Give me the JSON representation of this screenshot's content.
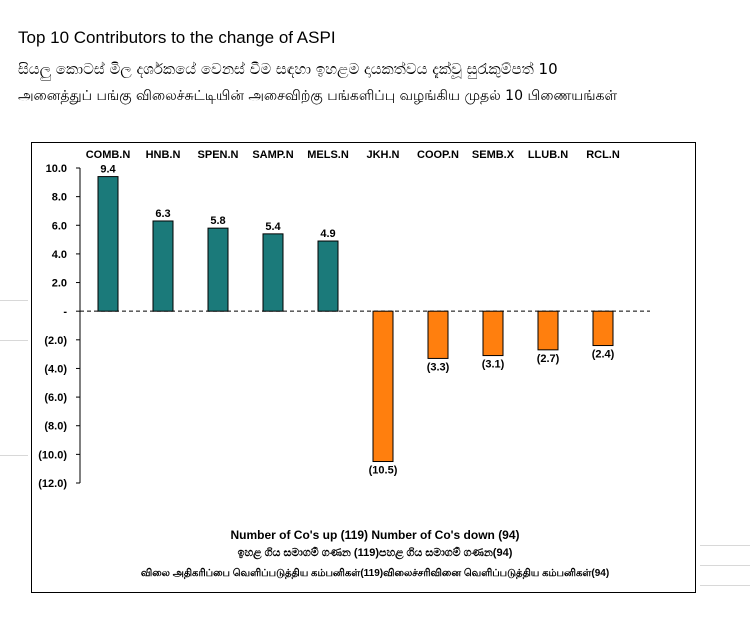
{
  "header": {
    "title": "Top 10 Contributors to the change of ASPI",
    "subtitle_sinhala": "සියලු කොටස් මිල දර්ශකයේ වෙනස් වීම සඳහා ඉහළම දායකත්වය දැක්වූ සුරැකුම්පත් 10",
    "subtitle_tamil": "அனைத்துப் பங்கு விலைச்சுட்டியின் அசைவிற்கு பங்களிப்பு வழங்கிய முதல் 10 பிணையங்கள்"
  },
  "chart_data": {
    "type": "bar",
    "categories": [
      "COMB.N",
      "HNB.N",
      "SPEN.N",
      "SAMP.N",
      "MELS.N",
      "JKH.N",
      "COOP.N",
      "SEMB.X",
      "LLUB.N",
      "RCL.N"
    ],
    "values": [
      9.4,
      6.3,
      5.8,
      5.4,
      4.9,
      -10.5,
      -3.3,
      -3.1,
      -2.7,
      -2.4
    ],
    "value_labels": [
      "9.4",
      "6.3",
      "5.8",
      "5.4",
      "4.9",
      "(10.5)",
      "(3.3)",
      "(3.1)",
      "(2.7)",
      "(2.4)"
    ],
    "ylim": [
      -12,
      10
    ],
    "yticks": [
      10,
      8,
      6,
      4,
      2,
      0,
      -2,
      -4,
      -6,
      -8,
      -10,
      -12
    ],
    "ytick_labels": [
      "10.0",
      "8.0",
      "6.0",
      "4.0",
      "2.0",
      "-",
      "(2.0)",
      "(4.0)",
      "(6.0)",
      "(8.0)",
      "(10.0)",
      "(12.0)"
    ],
    "category_labels_position": "top",
    "colors": {
      "positive": "#1B7A7A",
      "negative": "#FF7F0E",
      "bar_border": "#000000"
    },
    "xlabel": "",
    "ylabel": "",
    "grid": false,
    "legend": "none"
  },
  "footnotes": {
    "line1": "Number of Co's up (119) Number of Co's down  (94)",
    "line2": "ඉහළ ගිය සමාගම් ගණන (119)පහළ ගිය සමාගම් ගණන(94)",
    "line3": "விலை அதிகரிப்பை வெளிப்படுத்திய கம்பனிகள்(119)விலைச்சரிவினை வெளிப்படுத்திய கம்பனிகள்(94)"
  }
}
